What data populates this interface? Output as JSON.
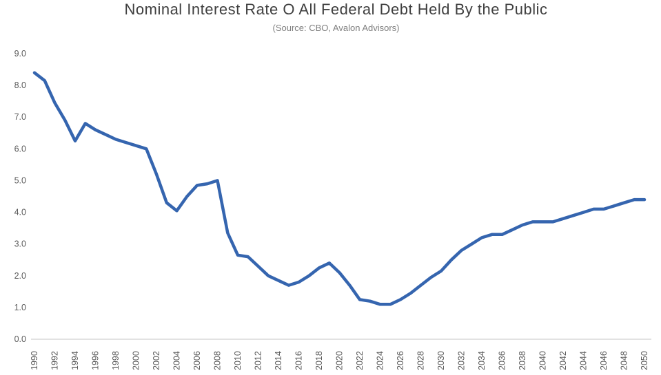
{
  "title": "Nominal Interest Rate O All Federal Debt Held By the Public",
  "subtitle": "(Source: CBO, Avalon Advisors)",
  "colors": {
    "line": "#3565af",
    "title_text": "#3f3f3f",
    "subtitle_text": "#7f7f7f",
    "axis_text": "#595959",
    "axis_line": "#d9d9d9",
    "background": "#ffffff"
  },
  "chart_data": {
    "type": "line",
    "title": "Nominal Interest Rate O All Federal Debt Held By the Public",
    "subtitle": "(Source: CBO, Avalon Advisors)",
    "xlabel": "",
    "ylabel": "",
    "grid": false,
    "legend": false,
    "ylim": [
      0.0,
      9.0
    ],
    "ytick_labels": [
      "0.0",
      "1.0",
      "2.0",
      "3.0",
      "4.0",
      "5.0",
      "6.0",
      "7.0",
      "8.0",
      "9.0"
    ],
    "xtick_labels": [
      "1990",
      "1992",
      "1994",
      "1996",
      "1998",
      "2000",
      "2002",
      "2004",
      "2006",
      "2008",
      "2010",
      "2012",
      "2014",
      "2016",
      "2018",
      "2020",
      "2022",
      "2024",
      "2026",
      "2028",
      "2030",
      "2032",
      "2034",
      "2036",
      "2038",
      "2040",
      "2042",
      "2044",
      "2046",
      "2048",
      "2050"
    ],
    "x": [
      1990,
      1991,
      1992,
      1993,
      1994,
      1995,
      1996,
      1997,
      1998,
      1999,
      2000,
      2001,
      2002,
      2003,
      2004,
      2005,
      2006,
      2007,
      2008,
      2009,
      2010,
      2011,
      2012,
      2013,
      2014,
      2015,
      2016,
      2017,
      2018,
      2019,
      2020,
      2021,
      2022,
      2023,
      2024,
      2025,
      2026,
      2027,
      2028,
      2029,
      2030,
      2031,
      2032,
      2033,
      2034,
      2035,
      2036,
      2037,
      2038,
      2039,
      2040,
      2041,
      2042,
      2043,
      2044,
      2045,
      2046,
      2047,
      2048,
      2049,
      2050
    ],
    "values": [
      8.4,
      8.15,
      7.45,
      6.9,
      6.25,
      6.8,
      6.6,
      6.45,
      6.3,
      6.2,
      6.1,
      6.0,
      5.2,
      4.3,
      4.05,
      4.5,
      4.85,
      4.9,
      5.0,
      3.35,
      2.65,
      2.6,
      2.3,
      2.0,
      1.85,
      1.7,
      1.8,
      2.0,
      2.25,
      2.4,
      2.1,
      1.7,
      1.25,
      1.2,
      1.1,
      1.1,
      1.25,
      1.45,
      1.7,
      1.95,
      2.15,
      2.5,
      2.8,
      3.0,
      3.2,
      3.3,
      3.3,
      3.45,
      3.6,
      3.7,
      3.7,
      3.7,
      3.8,
      3.9,
      4.0,
      4.1,
      4.1,
      4.2,
      4.3,
      4.4,
      4.4
    ]
  }
}
